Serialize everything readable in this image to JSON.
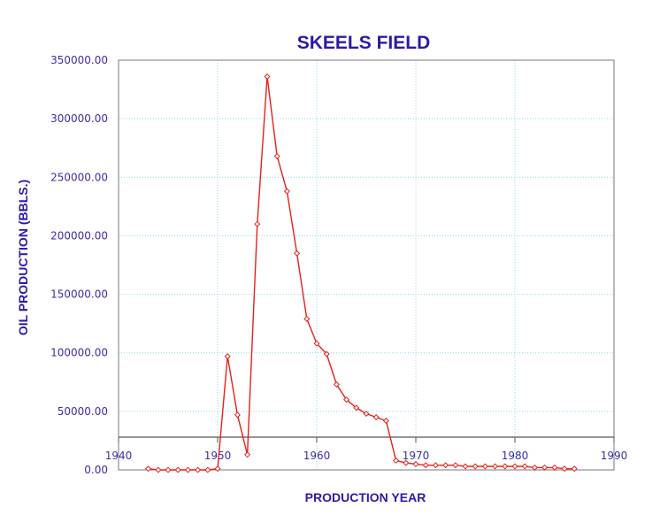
{
  "chart_data": {
    "type": "line",
    "title": "SKEELS FIELD",
    "xlabel": "PRODUCTION YEAR",
    "ylabel": "OIL PRODUCTION (BBLS.)",
    "xlim": [
      1940,
      1990
    ],
    "ylim": [
      0,
      350000
    ],
    "x_ticks": [
      "1940",
      "1950",
      "1960",
      "1970",
      "1980",
      "1990"
    ],
    "y_ticks": [
      "0.00",
      "50000.00",
      "100000.00",
      "150000.00",
      "200000.00",
      "250000.00",
      "300000.00",
      "350000.00"
    ],
    "grid": true,
    "colors": {
      "title": "#2b1aa8",
      "labels": "#2b1aa8",
      "ticks": "#3a2fa6",
      "series": "#e8201a",
      "grid": "#8ed9ea",
      "frame": "#777777"
    },
    "series": [
      {
        "x": [
          1943,
          1944,
          1945,
          1946,
          1947,
          1948,
          1949,
          1950,
          1951,
          1952,
          1953,
          1954,
          1955,
          1956,
          1957,
          1958,
          1959,
          1960,
          1961,
          1962,
          1963,
          1964,
          1965,
          1966,
          1967,
          1968,
          1969,
          1970,
          1971,
          1972,
          1973,
          1974,
          1975,
          1976,
          1977,
          1978,
          1979,
          1980,
          1981,
          1982,
          1983,
          1984,
          1985,
          1986
        ],
        "y": [
          1000,
          0,
          0,
          0,
          0,
          0,
          0,
          1000,
          97000,
          47000,
          13000,
          210000,
          336000,
          268000,
          238000,
          185000,
          129000,
          108000,
          99000,
          73000,
          60000,
          53000,
          48000,
          45000,
          42000,
          8000,
          6000,
          5000,
          4000,
          4000,
          4000,
          4000,
          3000,
          3000,
          3000,
          3000,
          3000,
          3000,
          3000,
          2000,
          2000,
          2000,
          1000,
          1000
        ]
      }
    ]
  }
}
